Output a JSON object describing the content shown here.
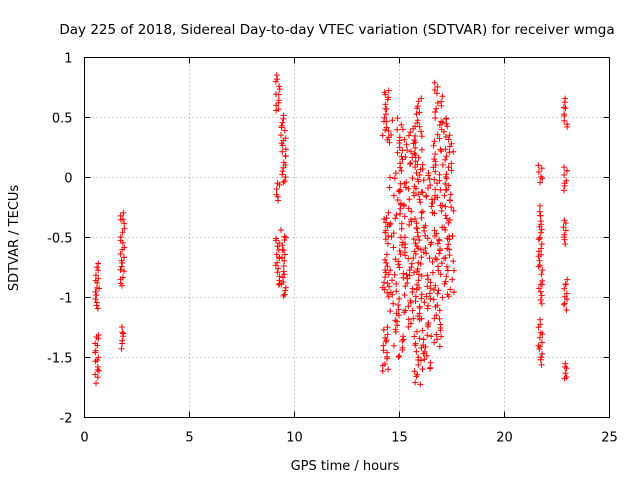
{
  "chart_data": {
    "type": "scatter",
    "title": "Day 225 of 2018, Sidereal Day-to-day VTEC variation (SDTVAR) for receiver wmga",
    "xlabel": "GPS time / hours",
    "ylabel": "SDTVAR / TECUs",
    "xlim": [
      0,
      25
    ],
    "ylim": [
      -2,
      1
    ],
    "xticks": [
      0,
      5,
      10,
      15,
      20,
      25
    ],
    "yticks": [
      -2,
      -1.5,
      -1,
      -0.5,
      0,
      0.5,
      1
    ],
    "xtick_labels": [
      "0",
      "5",
      "10",
      "15",
      "20",
      "25"
    ],
    "ytick_labels": [
      "-2",
      "-1.5",
      "-1",
      "-0.5",
      "0",
      "0.5",
      "1"
    ],
    "grid": true,
    "marker": "+",
    "color": "#ff0000",
    "series": [
      {
        "name": "SDTVAR",
        "clusters": [
          {
            "x_range": [
              0.5,
              0.7
            ],
            "segments": [
              [
                -0.72,
                -1.1
              ],
              [
                -1.3,
                -1.7
              ]
            ]
          },
          {
            "x_range": [
              1.7,
              1.9
            ],
            "segments": [
              [
                -0.28,
                -0.45
              ],
              [
                -0.5,
                -0.9
              ],
              [
                -1.25,
                -1.42
              ]
            ]
          },
          {
            "x_range": [
              9.1,
              9.3
            ],
            "segments": [
              [
                0.84,
                0.55
              ],
              [
                -0.05,
                -0.18
              ],
              [
                -0.5,
                -0.9
              ]
            ]
          },
          {
            "x_range": [
              9.35,
              9.6
            ],
            "segments": [
              [
                0.52,
                0.3
              ],
              [
                0.3,
                -0.05
              ],
              [
                -0.45,
                -0.7
              ],
              [
                -0.75,
                -1.0
              ]
            ]
          },
          {
            "x_range": [
              14.2,
              14.5
            ],
            "segments": [
              [
                0.74,
                0.3
              ],
              [
                -0.3,
                -0.55
              ],
              [
                -0.65,
                -1.0
              ],
              [
                -1.25,
                -1.62
              ]
            ]
          },
          {
            "x_range": [
              14.5,
              15.2
            ],
            "segments": [
              [
                0.5,
                0.3
              ],
              [
                0.3,
                -0.1
              ],
              [
                -0.1,
                -0.4
              ],
              [
                -0.4,
                -0.8
              ],
              [
                -0.8,
                -1.1
              ],
              [
                -1.1,
                -1.5
              ]
            ]
          },
          {
            "x_range": [
              15.2,
              15.7
            ],
            "segments": [
              [
                0.4,
                0.1
              ],
              [
                0.0,
                -0.4
              ],
              [
                -0.5,
                -0.8
              ],
              [
                -0.8,
                -1.1
              ],
              [
                -1.1,
                -1.25
              ]
            ]
          },
          {
            "x_range": [
              15.7,
              16.1
            ],
            "segments": [
              [
                0.65,
                0.2
              ],
              [
                0.2,
                -0.2
              ],
              [
                -0.3,
                -0.6
              ],
              [
                -0.6,
                -1.2
              ],
              [
                -1.3,
                -1.72
              ]
            ]
          },
          {
            "x_range": [
              16.1,
              16.6
            ],
            "segments": [
              [
                0.1,
                -0.3
              ],
              [
                -0.4,
                -0.7
              ],
              [
                -0.8,
                -1.1
              ],
              [
                -1.2,
                -1.6
              ]
            ]
          },
          {
            "x_range": [
              16.6,
              17.1
            ],
            "segments": [
              [
                0.78,
                0.4
              ],
              [
                0.35,
                0.1
              ],
              [
                0.1,
                -0.3
              ],
              [
                -0.4,
                -0.8
              ],
              [
                -0.9,
                -1.4
              ]
            ]
          },
          {
            "x_range": [
              17.1,
              17.6
            ],
            "segments": [
              [
                0.5,
                0.2
              ],
              [
                0.2,
                -0.1
              ],
              [
                -0.1,
                -0.5
              ],
              [
                -0.5,
                -1.0
              ]
            ]
          },
          {
            "x_range": [
              21.6,
              21.8
            ],
            "segments": [
              [
                0.1,
                -0.05
              ],
              [
                -0.25,
                -0.5
              ],
              [
                -0.5,
                -0.8
              ],
              [
                -0.85,
                -1.05
              ],
              [
                -1.2,
                -1.55
              ]
            ]
          },
          {
            "x_range": [
              22.8,
              23.0
            ],
            "segments": [
              [
                0.65,
                0.42
              ],
              [
                0.1,
                -0.1
              ],
              [
                -0.35,
                -0.55
              ],
              [
                -0.85,
                -1.1
              ],
              [
                -1.55,
                -1.68
              ]
            ]
          }
        ]
      }
    ]
  }
}
